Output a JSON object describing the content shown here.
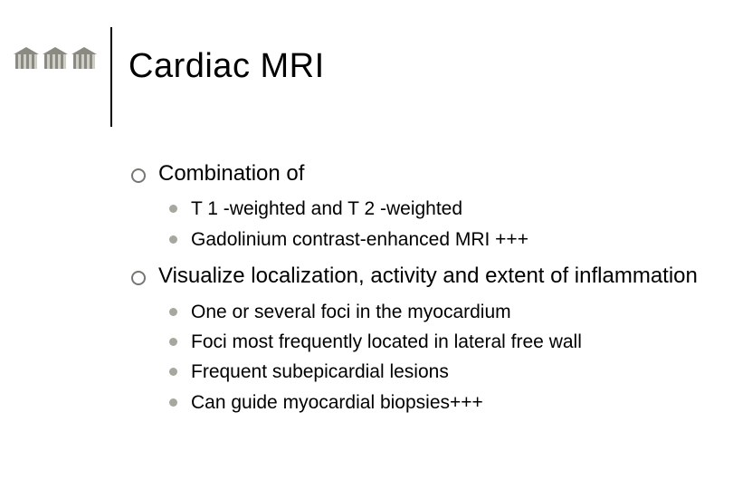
{
  "title": "Cardiac MRI",
  "items": [
    {
      "text": "Combination of",
      "sub": [
        "T 1 -weighted and T 2 -weighted",
        "Gadolinium contrast-enhanced MRI +++"
      ]
    },
    {
      "text": "Visualize localization, activity and extent of inflammation",
      "sub": [
        "One or several foci in the myocardium",
        "Foci most frequently located in lateral free wall",
        "Frequent subepicardial lesions",
        "Can guide myocardial biopsies+++"
      ]
    }
  ],
  "style": {
    "background": "#ffffff",
    "text_color": "#000000",
    "title_fontsize": 38,
    "lvl1_fontsize": 24,
    "lvl2_fontsize": 21,
    "lvl1_bullet_border": "#777772",
    "lvl2_bullet_fill": "#a7a79f",
    "vline_color": "#000000",
    "logo_gray": "#8a8a82",
    "logo_light": "#cfcfc8",
    "slide_width": 810,
    "slide_height": 540
  }
}
